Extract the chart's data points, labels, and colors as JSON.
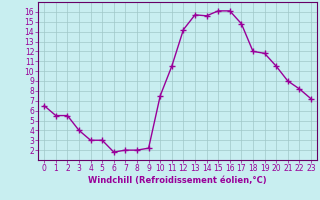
{
  "x": [
    0,
    1,
    2,
    3,
    4,
    5,
    6,
    7,
    8,
    9,
    10,
    11,
    12,
    13,
    14,
    15,
    16,
    17,
    18,
    19,
    20,
    21,
    22,
    23
  ],
  "y": [
    6.5,
    5.5,
    5.5,
    4.0,
    3.0,
    3.0,
    1.8,
    2.0,
    2.0,
    2.2,
    7.5,
    10.5,
    14.2,
    15.7,
    15.6,
    16.1,
    16.1,
    14.8,
    12.0,
    11.8,
    10.5,
    9.0,
    8.2,
    7.2
  ],
  "line_color": "#990099",
  "marker": "+",
  "marker_size": 4,
  "marker_linewidth": 1.0,
  "line_width": 1.0,
  "xlabel": "Windchill (Refroidissement éolien,°C)",
  "xlabel_fontsize": 6.0,
  "xlim": [
    -0.5,
    23.5
  ],
  "ylim": [
    1,
    17
  ],
  "yticks": [
    2,
    3,
    4,
    5,
    6,
    7,
    8,
    9,
    10,
    11,
    12,
    13,
    14,
    15,
    16
  ],
  "xticks": [
    0,
    1,
    2,
    3,
    4,
    5,
    6,
    7,
    8,
    9,
    10,
    11,
    12,
    13,
    14,
    15,
    16,
    17,
    18,
    19,
    20,
    21,
    22,
    23
  ],
  "tick_fontsize": 5.5,
  "bg_color": "#c8eef0",
  "grid_color": "#a0c8c8",
  "axes_color": "#990099",
  "spine_color": "#660066"
}
